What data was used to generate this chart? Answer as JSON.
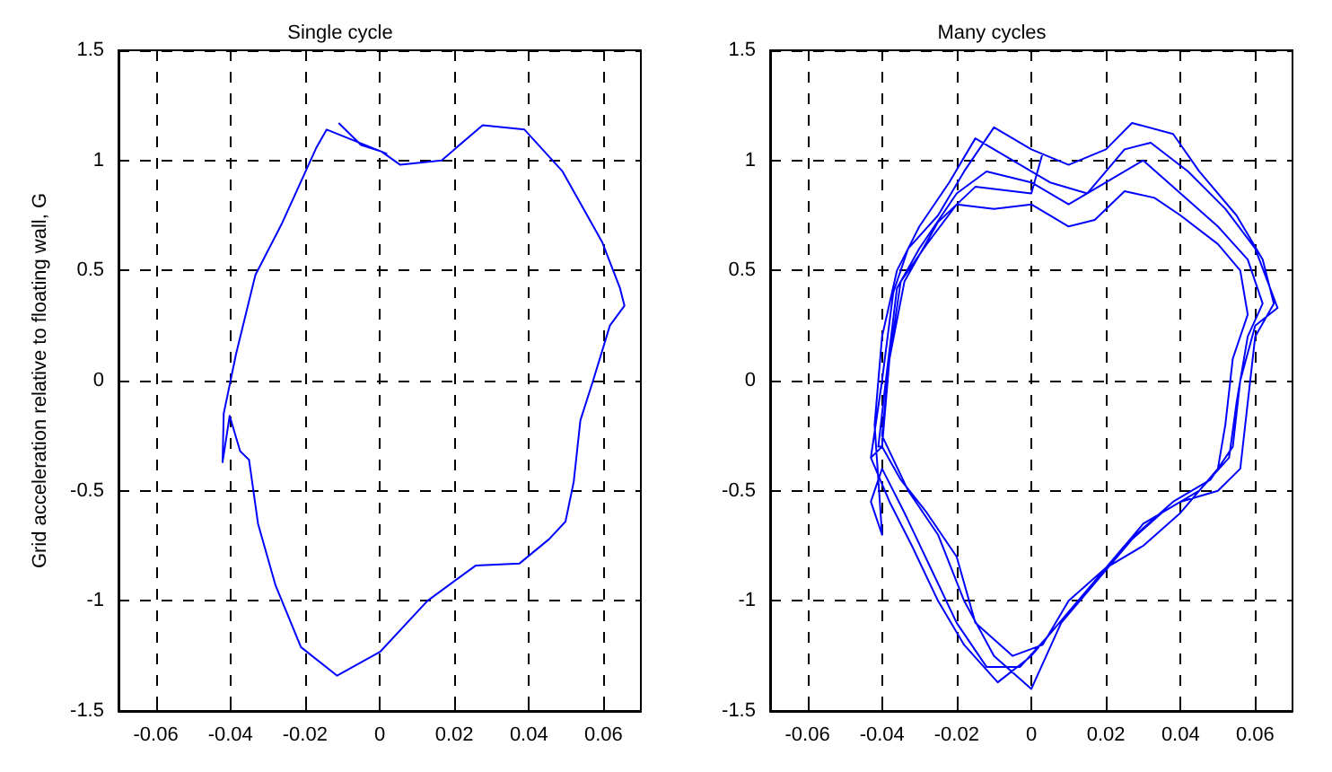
{
  "chart_data": [
    {
      "type": "line",
      "title": "Single cycle",
      "ylabel": "Grid acceleration relative to floating wall, G",
      "xlim": [
        -0.07,
        0.07
      ],
      "xticks": [
        -0.06,
        -0.04,
        -0.02,
        0,
        0.02,
        0.04,
        0.06
      ],
      "ylim": [
        -1.5,
        1.5
      ],
      "yticks": [
        -1.5,
        -1,
        -0.5,
        0,
        0.5,
        1,
        1.5
      ],
      "grid": true,
      "marker": "none",
      "line_style": "solid",
      "series": [
        {
          "color": "#0000ff",
          "x": [
            -0.011,
            -0.005,
            0.0005,
            0.0055,
            0.0166,
            0.0276,
            0.0388,
            0.049,
            0.0596,
            0.0644,
            0.0656,
            0.0617,
            0.0572,
            0.0538,
            0.052,
            0.0498,
            0.0454,
            0.0375,
            0.0257,
            0.0128,
            0.0002,
            -0.0114,
            -0.0211,
            -0.0279,
            -0.0326,
            -0.035,
            -0.0374,
            -0.0402,
            -0.0421,
            -0.0418,
            -0.0385,
            -0.0333,
            -0.0263,
            -0.0169,
            -0.0142,
            0.002
          ],
          "values": [
            1.17,
            1.07,
            1.04,
            0.98,
            1.0,
            1.16,
            1.14,
            0.95,
            0.63,
            0.42,
            0.34,
            0.25,
            0.0,
            -0.18,
            -0.46,
            -0.64,
            -0.72,
            -0.83,
            -0.84,
            -1.0,
            -1.23,
            -1.34,
            -1.21,
            -0.93,
            -0.65,
            -0.36,
            -0.32,
            -0.16,
            -0.37,
            -0.15,
            0.12,
            0.48,
            0.71,
            1.06,
            1.14,
            1.03
          ]
        }
      ]
    },
    {
      "type": "line",
      "title": "Many cycles",
      "xlim": [
        -0.07,
        0.07
      ],
      "xticks": [
        -0.06,
        -0.04,
        -0.02,
        0,
        0.02,
        0.04,
        0.06
      ],
      "ylim": [
        -1.5,
        1.5
      ],
      "yticks": [
        -1.5,
        -1,
        -0.5,
        0,
        0.5,
        1,
        1.5
      ],
      "grid": true,
      "marker": "none",
      "line_style": "solid",
      "series": [
        {
          "color": "#0000ff",
          "x": [
            -0.043,
            -0.04,
            -0.037,
            -0.033,
            -0.025,
            -0.018,
            -0.01,
            0.0,
            0.01,
            0.02,
            0.027,
            0.038,
            0.045,
            0.055,
            0.062,
            0.065,
            0.06,
            0.058,
            0.056,
            0.05,
            0.04,
            0.03,
            0.02,
            0.01,
            0.0,
            -0.009,
            -0.018,
            -0.025,
            -0.032,
            -0.038,
            -0.043,
            -0.04,
            -0.038,
            -0.035,
            -0.028,
            -0.02,
            -0.01,
            0.0,
            0.01,
            0.017,
            0.025,
            0.033,
            0.04,
            0.05,
            0.056,
            0.058,
            0.054,
            0.052,
            0.05,
            0.04,
            0.03,
            0.02,
            0.01,
            0.003,
            -0.005,
            -0.015,
            -0.02,
            -0.028,
            -0.035,
            -0.04,
            -0.041,
            -0.039,
            -0.036,
            -0.03,
            -0.02,
            -0.012,
            0.0,
            0.01,
            0.02,
            0.03,
            0.04,
            0.05,
            0.058,
            0.062,
            0.058,
            0.055,
            0.053,
            0.045,
            0.035,
            0.025,
            0.015,
            0.005,
            -0.003,
            -0.012,
            -0.02,
            -0.027,
            -0.034,
            -0.04,
            -0.043,
            -0.04,
            -0.042,
            -0.04,
            -0.036,
            -0.03,
            -0.022,
            -0.015,
            -0.005,
            0.005,
            0.015,
            0.025,
            0.032,
            0.042,
            0.052,
            0.06,
            0.066,
            0.06,
            0.056,
            0.054,
            0.048,
            0.038,
            0.028,
            0.018,
            0.008,
            0.0,
            -0.01,
            -0.018,
            -0.025,
            -0.033,
            -0.04,
            -0.038,
            -0.034,
            -0.025,
            -0.015,
            0.0,
            0.003
          ],
          "values": [
            -0.35,
            0.0,
            0.4,
            0.6,
            0.75,
            0.95,
            1.15,
            1.05,
            0.98,
            1.05,
            1.17,
            1.12,
            0.95,
            0.75,
            0.55,
            0.35,
            0.2,
            -0.1,
            -0.4,
            -0.5,
            -0.55,
            -0.65,
            -0.85,
            -1.05,
            -1.25,
            -1.37,
            -1.2,
            -1.0,
            -0.75,
            -0.55,
            -0.35,
            -0.3,
            0.1,
            0.45,
            0.62,
            0.8,
            0.78,
            0.8,
            0.7,
            0.73,
            0.86,
            0.83,
            0.75,
            0.62,
            0.5,
            0.3,
            0.1,
            -0.2,
            -0.4,
            -0.6,
            -0.75,
            -0.85,
            -1.0,
            -1.2,
            -1.25,
            -1.1,
            -0.8,
            -0.6,
            -0.45,
            -0.3,
            -0.3,
            0.0,
            0.42,
            0.6,
            0.85,
            0.95,
            0.9,
            0.8,
            0.9,
            1.0,
            0.85,
            0.7,
            0.55,
            0.35,
            0.2,
            -0.1,
            -0.35,
            -0.5,
            -0.6,
            -0.75,
            -0.95,
            -1.15,
            -1.3,
            -1.3,
            -1.1,
            -0.85,
            -0.6,
            -0.4,
            -0.55,
            -0.7,
            -0.2,
            0.2,
            0.5,
            0.7,
            0.9,
            1.1,
            1.0,
            0.9,
            0.85,
            1.05,
            1.08,
            0.95,
            0.78,
            0.6,
            0.33,
            0.25,
            0.0,
            -0.3,
            -0.45,
            -0.55,
            -0.7,
            -0.9,
            -1.1,
            -1.4,
            -1.25,
            -1.0,
            -0.7,
            -0.5,
            -0.25,
            0.1,
            0.45,
            0.72,
            0.88,
            0.85,
            1.03
          ]
        }
      ]
    }
  ]
}
